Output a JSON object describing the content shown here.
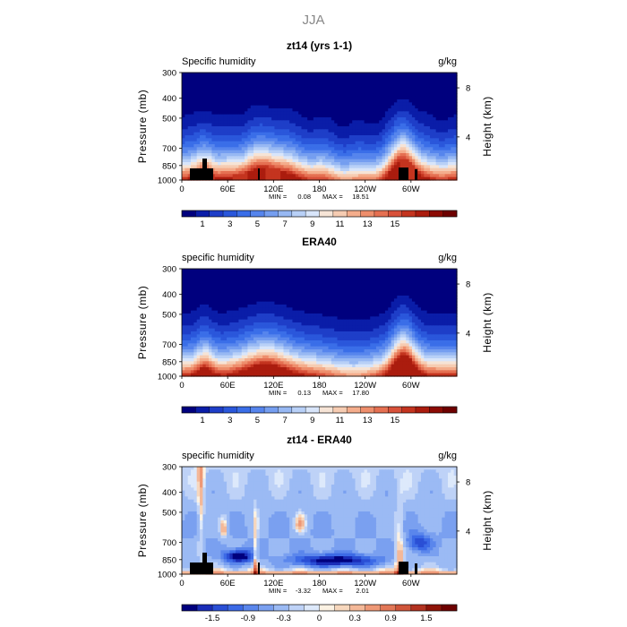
{
  "page_title": "JJA",
  "chart_data": [
    {
      "type": "heatmap",
      "title": "zt14 (yrs 1-1)",
      "left_label": "Specific humidity",
      "right_label": "g/kg",
      "ylabel": "Pressure (mb)",
      "ylabel_right": "Height (km)",
      "yticks": [
        "300",
        "400",
        "500",
        "700",
        "850",
        "1000"
      ],
      "yticks_right": [
        "8",
        "4"
      ],
      "xticks": [
        "0",
        "60E",
        "120E",
        "180",
        "120W",
        "60W"
      ],
      "min_label": "MIN =",
      "min_value": "0.08",
      "max_label": "MAX =",
      "max_value": "18.51",
      "colorbar_labels": [
        "1",
        "3",
        "5",
        "7",
        "9",
        "11",
        "13",
        "15"
      ],
      "palette": "full",
      "terrain": true,
      "max": 18.51
    },
    {
      "type": "heatmap",
      "title": "ERA40",
      "left_label": "specific humidity",
      "right_label": "g/kg",
      "ylabel": "Pressure (mb)",
      "ylabel_right": "Height (km)",
      "yticks": [
        "300",
        "400",
        "500",
        "700",
        "850",
        "1000"
      ],
      "yticks_right": [
        "8",
        "4"
      ],
      "xticks": [
        "0",
        "60E",
        "120E",
        "180",
        "120W",
        "60W"
      ],
      "min_label": "MIN =",
      "min_value": "0.13",
      "max_label": "MAX =",
      "max_value": "17.80",
      "colorbar_labels": [
        "1",
        "3",
        "5",
        "7",
        "9",
        "11",
        "13",
        "15"
      ],
      "palette": "full",
      "terrain": false,
      "max": 17.8
    },
    {
      "type": "heatmap",
      "title": "zt14 - ERA40",
      "left_label": "specific humidity",
      "right_label": "g/kg",
      "ylabel": "Pressure (mb)",
      "ylabel_right": "Height (km)",
      "yticks": [
        "300",
        "400",
        "500",
        "700",
        "850",
        "1000"
      ],
      "yticks_right": [
        "8",
        "4"
      ],
      "xticks": [
        "0",
        "60E",
        "120E",
        "180",
        "120W",
        "60W"
      ],
      "min_label": "MIN =",
      "min_value": "-3.32",
      "max_label": "MAX =",
      "max_value": "2.01",
      "colorbar_labels": [
        "-1.5",
        "-0.9",
        "-0.3",
        "0",
        "0.3",
        "0.9",
        "1.5"
      ],
      "palette": "diff",
      "terrain": true,
      "min": -3.32,
      "max": 2.01
    }
  ],
  "colors": {
    "full": [
      "#00007e",
      "#0a1da8",
      "#1e3ec8",
      "#2a57db",
      "#3a6ee8",
      "#5685ed",
      "#759ef0",
      "#97b8f3",
      "#b8d0f7",
      "#d8e5fa",
      "#f6e4d6",
      "#f6ccb2",
      "#f4ad8c",
      "#ee8e6c",
      "#e57052",
      "#d8513a",
      "#c4341f",
      "#ab1c0e",
      "#8c0b04",
      "#6e0000"
    ],
    "diff": [
      "#00007e",
      "#1a2db8",
      "#2a4fd5",
      "#3c6ae6",
      "#5a86ec",
      "#7aa0f0",
      "#9bbaf4",
      "#bed2f7",
      "#dde9fb",
      "#fcf2e3",
      "#f7d7bd",
      "#f4b898",
      "#ee9876",
      "#e27757",
      "#d0553a",
      "#b33220",
      "#8f1408",
      "#6e0000"
    ]
  }
}
